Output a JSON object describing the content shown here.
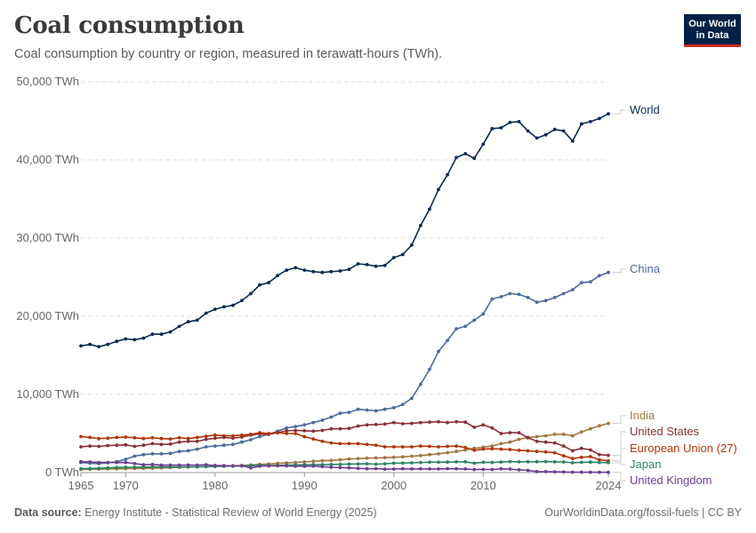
{
  "header": {
    "title": "Coal consumption",
    "subtitle": "Coal consumption by country or region, measured in terawatt-hours (TWh).",
    "logo_line1": "Our World",
    "logo_line2": "in Data"
  },
  "footer": {
    "source_label": "Data source:",
    "source_text": "Energy Institute - Statistical Review of World Energy (2025)",
    "url": "OurWorldinData.org/fossil-fuels | CC BY"
  },
  "chart_data": {
    "type": "line",
    "title": "Coal consumption",
    "xlabel": "",
    "ylabel": "",
    "xlim": [
      1965,
      2024
    ],
    "ylim": [
      0,
      50000
    ],
    "x_ticks": [
      1965,
      1970,
      1980,
      1990,
      2000,
      2010,
      2024
    ],
    "y_ticks": [
      {
        "value": 0,
        "label": "0 TWh"
      },
      {
        "value": 10000,
        "label": "10,000 TWh"
      },
      {
        "value": 20000,
        "label": "20,000 TWh"
      },
      {
        "value": 30000,
        "label": "30,000 TWh"
      },
      {
        "value": 40000,
        "label": "40,000 TWh"
      },
      {
        "value": 50000,
        "label": "50,000 TWh"
      }
    ],
    "grid": true,
    "legend": "labels at right end of lines",
    "x": [
      1965,
      1966,
      1967,
      1968,
      1969,
      1970,
      1971,
      1972,
      1973,
      1974,
      1975,
      1976,
      1977,
      1978,
      1979,
      1980,
      1981,
      1982,
      1983,
      1984,
      1985,
      1986,
      1987,
      1988,
      1989,
      1990,
      1991,
      1992,
      1993,
      1994,
      1995,
      1996,
      1997,
      1998,
      1999,
      2000,
      2001,
      2002,
      2003,
      2004,
      2005,
      2006,
      2007,
      2008,
      2009,
      2010,
      2011,
      2012,
      2013,
      2014,
      2015,
      2016,
      2017,
      2018,
      2019,
      2020,
      2021,
      2022,
      2023,
      2024
    ],
    "series": [
      {
        "name": "World",
        "color": "#0b2a50",
        "values": [
          16200,
          16400,
          16100,
          16400,
          16800,
          17100,
          17000,
          17200,
          17700,
          17700,
          18000,
          18700,
          19300,
          19500,
          20400,
          20900,
          21200,
          21400,
          22000,
          22900,
          24000,
          24300,
          25200,
          25900,
          26200,
          25900,
          25700,
          25600,
          25700,
          25800,
          26000,
          26700,
          26600,
          26400,
          26500,
          27500,
          27900,
          29100,
          31600,
          33700,
          36200,
          38100,
          40300,
          40800,
          40200,
          42000,
          44000,
          44100,
          44800,
          44900,
          43700,
          42800,
          43200,
          43900,
          43700,
          42400,
          44600,
          44900,
          45300,
          45900
        ]
      },
      {
        "name": "China",
        "color": "#4c6a9c",
        "values": [
          1300,
          1200,
          1150,
          1250,
          1400,
          1700,
          2100,
          2300,
          2400,
          2400,
          2450,
          2700,
          2800,
          3000,
          3300,
          3400,
          3500,
          3600,
          3900,
          4200,
          4600,
          4900,
          5300,
          5700,
          5900,
          6100,
          6400,
          6700,
          7100,
          7600,
          7700,
          8100,
          8000,
          7900,
          8100,
          8300,
          8700,
          9500,
          11300,
          13200,
          15500,
          16900,
          18400,
          18700,
          19500,
          20300,
          22200,
          22500,
          22900,
          22800,
          22400,
          21800,
          22000,
          22400,
          22900,
          23400,
          24300,
          24400,
          25200,
          25600
        ]
      },
      {
        "name": "India",
        "color": "#a2763f",
        "values": [
          400,
          420,
          440,
          460,
          480,
          500,
          510,
          530,
          560,
          600,
          640,
          670,
          700,
          740,
          760,
          780,
          820,
          870,
          920,
          980,
          1040,
          1100,
          1170,
          1240,
          1300,
          1360,
          1440,
          1510,
          1560,
          1640,
          1740,
          1780,
          1840,
          1870,
          1910,
          1960,
          2010,
          2100,
          2170,
          2290,
          2400,
          2540,
          2700,
          2900,
          3100,
          3250,
          3400,
          3700,
          3900,
          4250,
          4500,
          4600,
          4700,
          4900,
          4900,
          4700,
          5200,
          5600,
          6000,
          6300
        ]
      },
      {
        "name": "United States",
        "color": "#883039",
        "values": [
          3300,
          3400,
          3350,
          3450,
          3500,
          3550,
          3350,
          3500,
          3700,
          3600,
          3650,
          3900,
          4000,
          4000,
          4250,
          4400,
          4500,
          4400,
          4550,
          4800,
          4950,
          4900,
          5100,
          5350,
          5400,
          5350,
          5300,
          5400,
          5600,
          5600,
          5650,
          5950,
          6100,
          6150,
          6200,
          6400,
          6250,
          6300,
          6400,
          6450,
          6500,
          6400,
          6500,
          6450,
          5800,
          6100,
          5700,
          5000,
          5100,
          5100,
          4450,
          4000,
          3900,
          3800,
          3400,
          2800,
          3100,
          2900,
          2300,
          2200
        ]
      },
      {
        "name": "European Union (27)",
        "color": "#b13507",
        "values": [
          4600,
          4500,
          4350,
          4400,
          4500,
          4550,
          4450,
          4350,
          4450,
          4350,
          4300,
          4450,
          4350,
          4500,
          4650,
          4800,
          4700,
          4700,
          4800,
          4900,
          5100,
          5000,
          5100,
          5000,
          5000,
          4600,
          4300,
          4000,
          3800,
          3700,
          3700,
          3700,
          3600,
          3500,
          3300,
          3300,
          3300,
          3300,
          3400,
          3350,
          3300,
          3350,
          3400,
          3200,
          2850,
          3000,
          3050,
          3000,
          2950,
          2850,
          2800,
          2700,
          2650,
          2550,
          2150,
          1800,
          1950,
          2050,
          1650,
          1500
        ]
      },
      {
        "name": "Japan",
        "color": "#2c8465",
        "values": [
          500,
          520,
          560,
          600,
          650,
          680,
          680,
          700,
          720,
          750,
          720,
          730,
          740,
          740,
          770,
          800,
          820,
          830,
          840,
          890,
          930,
          910,
          920,
          960,
          980,
          1000,
          1020,
          1010,
          1030,
          1060,
          1090,
          1100,
          1120,
          1080,
          1120,
          1200,
          1220,
          1250,
          1300,
          1330,
          1330,
          1340,
          1370,
          1370,
          1200,
          1320,
          1300,
          1350,
          1400,
          1380,
          1390,
          1390,
          1410,
          1380,
          1360,
          1260,
          1320,
          1340,
          1290,
          1270
        ]
      },
      {
        "name": "United Kingdom",
        "color": "#6d3e91",
        "values": [
          1400,
          1360,
          1290,
          1290,
          1280,
          1290,
          1160,
          1000,
          1050,
          950,
          950,
          960,
          970,
          960,
          1000,
          910,
          900,
          860,
          860,
          600,
          820,
          850,
          870,
          850,
          820,
          810,
          830,
          760,
          680,
          640,
          600,
          550,
          490,
          500,
          440,
          460,
          490,
          470,
          480,
          470,
          470,
          500,
          490,
          470,
          390,
          410,
          400,
          480,
          460,
          350,
          280,
          130,
          120,
          100,
          80,
          60,
          60,
          50,
          40,
          30
        ]
      }
    ],
    "end_labels": [
      {
        "series": "World",
        "text": "World"
      },
      {
        "series": "China",
        "text": "China"
      },
      {
        "series": "India",
        "text": "India"
      },
      {
        "series": "United States",
        "text": "United States"
      },
      {
        "series": "European Union (27)",
        "text": "European Union (27)"
      },
      {
        "series": "Japan",
        "text": "Japan"
      },
      {
        "series": "United Kingdom",
        "text": "United Kingdom"
      }
    ]
  }
}
